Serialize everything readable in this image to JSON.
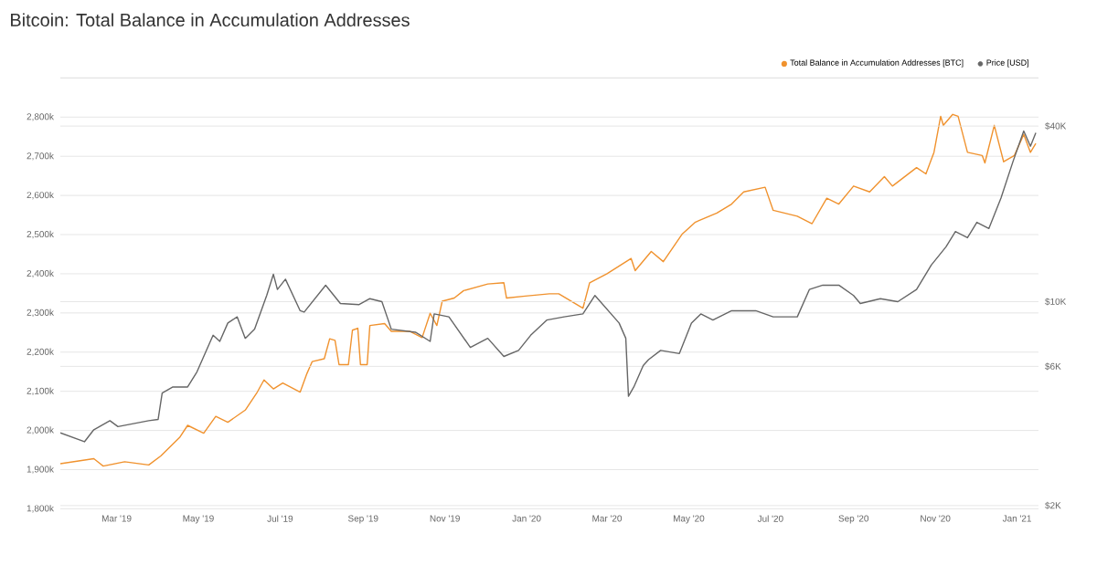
{
  "chart_data": {
    "type": "line",
    "title": "Bitcoin: Total Balance in Accumulation Addresses",
    "xlim": [
      "2019-01-18",
      "2021-01-17"
    ],
    "xticks": [
      {
        "value": "2019-03-01",
        "label": "Mar '19"
      },
      {
        "value": "2019-05-01",
        "label": "May '19"
      },
      {
        "value": "2019-07-01",
        "label": "Jul '19"
      },
      {
        "value": "2019-09-01",
        "label": "Sep '19"
      },
      {
        "value": "2019-11-01",
        "label": "Nov '19"
      },
      {
        "value": "2020-01-01",
        "label": "Jan '20"
      },
      {
        "value": "2020-03-01",
        "label": "Mar '20"
      },
      {
        "value": "2020-05-01",
        "label": "May '20"
      },
      {
        "value": "2020-07-01",
        "label": "Jul '20"
      },
      {
        "value": "2020-09-01",
        "label": "Sep '20"
      },
      {
        "value": "2020-11-01",
        "label": "Nov '20"
      },
      {
        "value": "2021-01-01",
        "label": "Jan '21"
      }
    ],
    "ylim": [
      1800,
      2900
    ],
    "yticks": [
      {
        "value": 1800,
        "label": "1,800k"
      },
      {
        "value": 1900,
        "label": "1,900k"
      },
      {
        "value": 2000,
        "label": "2,000k"
      },
      {
        "value": 2100,
        "label": "2,100k"
      },
      {
        "value": 2200,
        "label": "2,200k"
      },
      {
        "value": 2300,
        "label": "2,300k"
      },
      {
        "value": 2400,
        "label": "2,400k"
      },
      {
        "value": 2500,
        "label": "2,500k"
      },
      {
        "value": 2600,
        "label": "2,600k"
      },
      {
        "value": 2700,
        "label": "2,700k"
      },
      {
        "value": 2800,
        "label": "2,800k"
      },
      {
        "value": 2900,
        "label": null
      }
    ],
    "y2lim": [
      1950,
      58500
    ],
    "y2ticks": [
      {
        "value": 2000,
        "label": "$2K"
      },
      {
        "value": 6000,
        "label": "$6K"
      },
      {
        "value": 10000,
        "label": "$10K"
      },
      {
        "value": 40000,
        "label": "$40K"
      },
      {
        "value": 58500,
        "label": null
      }
    ],
    "log": "y2",
    "grid": "y",
    "legend": "top right",
    "series": [
      {
        "name": "Total Balance in Accumulation Addresses [BTC]",
        "color": "#f0922e",
        "x": [
          "2019-01-18",
          "2019-02-12",
          "2019-02-19",
          "2019-03-07",
          "2019-03-25",
          "2019-04-03",
          "2019-04-17",
          "2019-04-23",
          "2019-05-05",
          "2019-05-14",
          "2019-05-23",
          "2019-06-05",
          "2019-06-14",
          "2019-06-19",
          "2019-06-26",
          "2019-07-03",
          "2019-07-16",
          "2019-07-21",
          "2019-07-25",
          "2019-08-03",
          "2019-08-07",
          "2019-08-11",
          "2019-08-14",
          "2019-08-21",
          "2019-08-24",
          "2019-08-28",
          "2019-08-30",
          "2019-09-04",
          "2019-09-06",
          "2019-09-17",
          "2019-09-22",
          "2019-10-06",
          "2019-10-15",
          "2019-10-21",
          "2019-10-26",
          "2019-10-30",
          "2019-11-08",
          "2019-11-15",
          "2019-12-03",
          "2019-12-15",
          "2019-12-17",
          "2019-12-31",
          "2020-01-18",
          "2020-01-25",
          "2020-02-12",
          "2020-02-17",
          "2020-03-01",
          "2020-03-19",
          "2020-03-22",
          "2020-04-03",
          "2020-04-12",
          "2020-04-26",
          "2020-05-06",
          "2020-05-22",
          "2020-06-02",
          "2020-06-11",
          "2020-06-27",
          "2020-07-03",
          "2020-07-21",
          "2020-08-01",
          "2020-08-12",
          "2020-08-21",
          "2020-09-01",
          "2020-09-13",
          "2020-09-24",
          "2020-09-30",
          "2020-10-18",
          "2020-10-25",
          "2020-10-31",
          "2020-11-05",
          "2020-11-07",
          "2020-11-14",
          "2020-11-18",
          "2020-11-25",
          "2020-12-06",
          "2020-12-08",
          "2020-12-15",
          "2020-12-22",
          "2020-12-30",
          "2021-01-06",
          "2021-01-11",
          "2021-01-15"
        ],
        "values": [
          1915,
          1928,
          1909,
          1920,
          1912,
          1935,
          1982,
          2013,
          1993,
          2036,
          2021,
          2052,
          2098,
          2129,
          2106,
          2121,
          2098,
          2145,
          2176,
          2183,
          2234,
          2230,
          2168,
          2168,
          2256,
          2261,
          2168,
          2168,
          2268,
          2273,
          2253,
          2253,
          2237,
          2299,
          2268,
          2330,
          2338,
          2357,
          2374,
          2377,
          2338,
          2343,
          2349,
          2349,
          2312,
          2377,
          2400,
          2439,
          2408,
          2457,
          2431,
          2501,
          2532,
          2555,
          2578,
          2609,
          2621,
          2562,
          2547,
          2528,
          2593,
          2578,
          2624,
          2609,
          2648,
          2624,
          2671,
          2655,
          2710,
          2802,
          2779,
          2807,
          2802,
          2710,
          2702,
          2683,
          2779,
          2686,
          2702,
          2756,
          2710,
          2733
        ]
      },
      {
        "name": "Price [USD]",
        "color": "#666666",
        "axis": "y2",
        "x": [
          "2019-01-18",
          "2019-02-05",
          "2019-02-12",
          "2019-02-24",
          "2019-03-02",
          "2019-03-25",
          "2019-04-01",
          "2019-04-04",
          "2019-04-12",
          "2019-04-23",
          "2019-04-30",
          "2019-05-12",
          "2019-05-17",
          "2019-05-23",
          "2019-05-30",
          "2019-06-05",
          "2019-06-12",
          "2019-06-21",
          "2019-06-26",
          "2019-06-29",
          "2019-07-05",
          "2019-07-16",
          "2019-07-19",
          "2019-08-04",
          "2019-08-15",
          "2019-08-29",
          "2019-09-06",
          "2019-09-15",
          "2019-09-22",
          "2019-10-10",
          "2019-10-21",
          "2019-10-24",
          "2019-11-04",
          "2019-11-20",
          "2019-12-03",
          "2019-12-15",
          "2019-12-26",
          "2020-01-04",
          "2020-01-16",
          "2020-01-29",
          "2020-02-12",
          "2020-02-21",
          "2020-03-10",
          "2020-03-15",
          "2020-03-17",
          "2020-03-21",
          "2020-03-28",
          "2020-04-01",
          "2020-04-10",
          "2020-04-24",
          "2020-05-03",
          "2020-05-10",
          "2020-05-19",
          "2020-06-02",
          "2020-06-20",
          "2020-07-03",
          "2020-07-21",
          "2020-07-30",
          "2020-08-09",
          "2020-08-21",
          "2020-09-01",
          "2020-09-06",
          "2020-09-21",
          "2020-10-04",
          "2020-10-18",
          "2020-10-29",
          "2020-11-09",
          "2020-11-16",
          "2020-11-25",
          "2020-12-02",
          "2020-12-11",
          "2020-12-20",
          "2020-12-29",
          "2021-01-06",
          "2021-01-11",
          "2021-01-15"
        ],
        "values": [
          3550,
          3310,
          3640,
          3910,
          3730,
          3910,
          3950,
          4860,
          5100,
          5100,
          5750,
          7670,
          7310,
          8450,
          8870,
          7490,
          8050,
          10500,
          12420,
          11010,
          11940,
          9310,
          9210,
          11390,
          9860,
          9770,
          10240,
          10000,
          8050,
          7860,
          7310,
          9080,
          8870,
          6970,
          7490,
          6490,
          6810,
          7670,
          8650,
          8870,
          9080,
          10500,
          8450,
          7490,
          4740,
          5100,
          6040,
          6330,
          6810,
          6640,
          8450,
          9080,
          8650,
          9310,
          9310,
          8870,
          8870,
          11010,
          11390,
          11390,
          10500,
          9860,
          10240,
          10000,
          11010,
          13350,
          15420,
          17390,
          16570,
          18710,
          17820,
          22650,
          30260,
          38470,
          34120,
          37940
        ]
      }
    ]
  }
}
